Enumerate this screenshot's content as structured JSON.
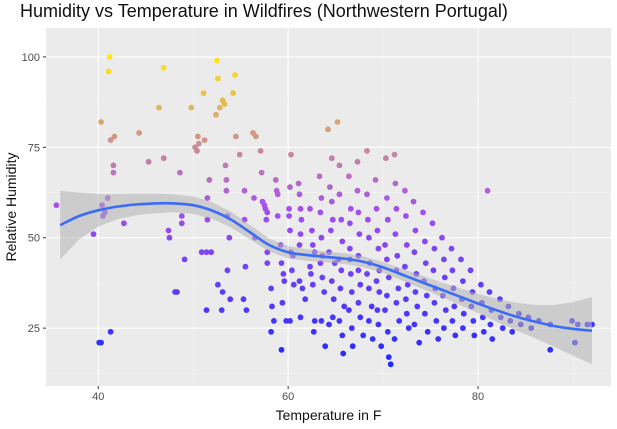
{
  "chart_data": {
    "type": "scatter",
    "title": "Humidity vs Temperature in Wildfires (Northwestern Portugal)",
    "xlabel": "Temperature in F",
    "ylabel": "Relative Humidity",
    "xlim": [
      34.5,
      94
    ],
    "ylim": [
      9,
      108
    ],
    "x_ticks": [
      40,
      60,
      80
    ],
    "y_ticks": [
      25,
      50,
      75,
      100
    ],
    "color_scale": {
      "low": "#1f2bff",
      "mid": "#a34ef0",
      "high": "#ffe713",
      "domain": [
        15,
        100
      ]
    },
    "smooth_fit": {
      "method": "loess",
      "x": [
        36,
        38,
        40,
        42,
        44,
        46,
        48,
        50,
        52,
        54,
        56,
        58,
        60,
        62,
        64,
        66,
        68,
        70,
        72,
        74,
        76,
        78,
        80,
        82,
        84,
        86,
        88,
        90,
        92
      ],
      "y": [
        53.5,
        56,
        57.6,
        58.6,
        59.2,
        59.5,
        59.5,
        59,
        57.5,
        55,
        51.5,
        48,
        46,
        45.2,
        44.7,
        44.2,
        43.3,
        41.8,
        39.8,
        37.8,
        35.8,
        33.8,
        31.8,
        29.9,
        28.2,
        26.8,
        25.6,
        24.8,
        24.3
      ],
      "ci_half_width": [
        9.5,
        6.5,
        4.5,
        3.5,
        3,
        2.7,
        2.5,
        2.4,
        2.3,
        2.2,
        2,
        1.8,
        1.7,
        1.6,
        1.5,
        1.5,
        1.5,
        1.5,
        1.6,
        1.8,
        2,
        2.3,
        2.7,
        3.2,
        3.8,
        4.6,
        5.8,
        7.4,
        9.3
      ],
      "color": "#3b6cf5",
      "band_color": "#b3b3b3"
    },
    "points": [
      [
        35.6,
        59
      ],
      [
        39.5,
        51
      ],
      [
        40.3,
        82
      ],
      [
        40.1,
        21
      ],
      [
        40.3,
        21
      ],
      [
        40.4,
        59
      ],
      [
        40.5,
        56
      ],
      [
        40.7,
        57
      ],
      [
        41,
        61
      ],
      [
        41.1,
        96
      ],
      [
        41.2,
        100
      ],
      [
        41.3,
        77
      ],
      [
        41.7,
        78
      ],
      [
        41.6,
        70
      ],
      [
        41.6,
        68
      ],
      [
        41.3,
        24
      ],
      [
        42.7,
        54
      ],
      [
        44.3,
        79
      ],
      [
        45.3,
        71
      ],
      [
        46.4,
        86
      ],
      [
        46.9,
        97
      ],
      [
        46.9,
        72
      ],
      [
        47.4,
        52
      ],
      [
        47.5,
        50
      ],
      [
        48.6,
        68
      ],
      [
        48.8,
        56
      ],
      [
        48.8,
        54
      ],
      [
        48.1,
        35
      ],
      [
        48.3,
        35
      ],
      [
        49.1,
        44
      ],
      [
        49.8,
        86
      ],
      [
        50.2,
        75
      ],
      [
        50.4,
        74
      ],
      [
        50.5,
        78
      ],
      [
        50.6,
        76
      ],
      [
        51.1,
        90
      ],
      [
        51.2,
        77
      ],
      [
        51.5,
        61
      ],
      [
        51.5,
        55
      ],
      [
        51.4,
        46
      ],
      [
        51.7,
        66
      ],
      [
        51.9,
        46
      ],
      [
        52.4,
        84
      ],
      [
        52.5,
        99
      ],
      [
        52.6,
        94
      ],
      [
        52.8,
        86
      ],
      [
        53.1,
        88
      ],
      [
        53.3,
        87
      ],
      [
        53.4,
        70
      ],
      [
        53.5,
        66
      ],
      [
        53.5,
        63
      ],
      [
        53.6,
        56
      ],
      [
        53.8,
        50
      ],
      [
        53.6,
        41
      ],
      [
        53.9,
        33
      ],
      [
        53.1,
        35
      ],
      [
        53.0,
        30
      ],
      [
        51.4,
        30
      ],
      [
        50.9,
        46
      ],
      [
        52.6,
        37
      ],
      [
        54.4,
        95
      ],
      [
        54.2,
        90
      ],
      [
        54.5,
        78
      ],
      [
        54.9,
        73
      ],
      [
        55.4,
        63
      ],
      [
        55.4,
        55
      ],
      [
        55.5,
        42
      ],
      [
        55.3,
        33
      ],
      [
        55.6,
        30
      ],
      [
        56.3,
        79
      ],
      [
        56.6,
        78
      ],
      [
        56.4,
        61
      ],
      [
        56.5,
        50
      ],
      [
        57.1,
        74
      ],
      [
        57.2,
        68
      ],
      [
        57.3,
        60
      ],
      [
        57.5,
        59
      ],
      [
        57.6,
        58
      ],
      [
        57.8,
        57
      ],
      [
        57.7,
        55
      ],
      [
        57.8,
        46
      ],
      [
        57.8,
        43
      ],
      [
        58.2,
        36
      ],
      [
        58.3,
        31
      ],
      [
        58.5,
        27
      ],
      [
        58.2,
        24
      ],
      [
        58.7,
        66
      ],
      [
        58.8,
        63
      ],
      [
        58.9,
        62
      ],
      [
        58.9,
        56
      ],
      [
        59.2,
        48
      ],
      [
        59.3,
        43
      ],
      [
        59.5,
        40
      ],
      [
        59.6,
        38
      ],
      [
        59.4,
        32
      ],
      [
        59.8,
        27
      ],
      [
        59.3,
        19
      ],
      [
        60.3,
        73
      ],
      [
        60.2,
        64
      ],
      [
        60.1,
        58
      ],
      [
        60.1,
        56
      ],
      [
        60.2,
        52
      ],
      [
        60.3,
        46
      ],
      [
        60.5,
        45
      ],
      [
        60.4,
        41
      ],
      [
        60.2,
        27
      ],
      [
        60.6,
        37
      ],
      [
        61.1,
        65
      ],
      [
        61.2,
        62
      ],
      [
        61.3,
        58
      ],
      [
        61.4,
        55
      ],
      [
        61.3,
        51
      ],
      [
        61.2,
        48
      ],
      [
        61.2,
        38
      ],
      [
        61.5,
        36
      ],
      [
        61.8,
        33
      ],
      [
        61.3,
        28
      ],
      [
        62.3,
        58
      ],
      [
        62.5,
        52
      ],
      [
        62.6,
        48
      ],
      [
        62.8,
        46
      ],
      [
        62.3,
        42
      ],
      [
        62.4,
        40
      ],
      [
        62.6,
        37
      ],
      [
        62.8,
        27
      ],
      [
        62.7,
        24
      ],
      [
        63.3,
        67
      ],
      [
        63.5,
        61
      ],
      [
        63.4,
        57
      ],
      [
        63.5,
        50
      ],
      [
        63.6,
        45
      ],
      [
        63.4,
        43
      ],
      [
        63.6,
        39
      ],
      [
        63.8,
        35
      ],
      [
        63.5,
        27
      ],
      [
        63.9,
        20
      ],
      [
        64.2,
        80
      ],
      [
        64.6,
        72
      ],
      [
        64.4,
        64
      ],
      [
        64.6,
        60
      ],
      [
        64.7,
        55
      ],
      [
        64.5,
        52
      ],
      [
        64.3,
        46
      ],
      [
        64.9,
        43
      ],
      [
        64.6,
        38
      ],
      [
        64.8,
        33
      ],
      [
        64.7,
        28
      ],
      [
        64.3,
        26
      ],
      [
        65.2,
        82
      ],
      [
        65.4,
        70
      ],
      [
        65.4,
        62
      ],
      [
        65.6,
        55
      ],
      [
        65.7,
        49
      ],
      [
        65.3,
        44
      ],
      [
        65.6,
        41
      ],
      [
        65.5,
        36
      ],
      [
        65.9,
        31
      ],
      [
        65.4,
        27
      ],
      [
        65.7,
        23
      ],
      [
        65.8,
        18
      ],
      [
        66.4,
        67
      ],
      [
        66.6,
        58
      ],
      [
        66.5,
        54
      ],
      [
        66.5,
        47
      ],
      [
        66.5,
        44
      ],
      [
        66.6,
        40
      ],
      [
        66.7,
        35
      ],
      [
        66.4,
        30
      ],
      [
        66.7,
        25
      ],
      [
        66.8,
        20
      ],
      [
        67.3,
        71
      ],
      [
        67.3,
        63
      ],
      [
        67.4,
        57
      ],
      [
        67.5,
        51
      ],
      [
        67.4,
        45
      ],
      [
        67.4,
        41
      ],
      [
        67.6,
        37
      ],
      [
        67.4,
        32
      ],
      [
        67.6,
        28
      ],
      [
        67.9,
        23
      ],
      [
        68.3,
        74
      ],
      [
        68.3,
        62
      ],
      [
        68.4,
        55
      ],
      [
        68.5,
        50
      ],
      [
        68.6,
        43
      ],
      [
        68.3,
        40
      ],
      [
        68.5,
        36
      ],
      [
        68.8,
        31
      ],
      [
        68.5,
        27
      ],
      [
        68.9,
        22
      ],
      [
        69.2,
        66
      ],
      [
        69.3,
        58
      ],
      [
        69.4,
        52
      ],
      [
        69.5,
        47
      ],
      [
        69.6,
        41
      ],
      [
        69.3,
        38
      ],
      [
        69.6,
        35
      ],
      [
        69.4,
        30
      ],
      [
        69.5,
        26
      ],
      [
        69.8,
        20
      ],
      [
        70.3,
        72
      ],
      [
        70.4,
        61
      ],
      [
        70.5,
        55
      ],
      [
        70.2,
        48
      ],
      [
        70.4,
        44
      ],
      [
        70.6,
        39
      ],
      [
        70.4,
        34
      ],
      [
        70.2,
        30
      ],
      [
        70.5,
        24
      ],
      [
        70.6,
        17
      ],
      [
        70.8,
        15
      ],
      [
        71.2,
        73
      ],
      [
        71.3,
        65
      ],
      [
        71.4,
        58
      ],
      [
        71.3,
        51
      ],
      [
        71.5,
        45
      ],
      [
        71.4,
        41
      ],
      [
        71.6,
        36
      ],
      [
        71.4,
        32
      ],
      [
        71.7,
        27
      ],
      [
        71.2,
        22
      ],
      [
        72.3,
        63
      ],
      [
        72.4,
        56
      ],
      [
        72.5,
        48
      ],
      [
        72.3,
        42
      ],
      [
        72.6,
        37
      ],
      [
        72.4,
        33
      ],
      [
        72.5,
        29
      ],
      [
        72.7,
        25
      ],
      [
        73.2,
        60
      ],
      [
        73.4,
        52
      ],
      [
        73.3,
        46
      ],
      [
        73.5,
        40
      ],
      [
        73.4,
        35
      ],
      [
        73.6,
        31
      ],
      [
        73.3,
        26
      ],
      [
        73.8,
        21
      ],
      [
        74.2,
        57
      ],
      [
        74.4,
        49
      ],
      [
        74.5,
        43
      ],
      [
        74.3,
        38
      ],
      [
        74.6,
        34
      ],
      [
        74.4,
        29
      ],
      [
        74.7,
        24
      ],
      [
        75.2,
        54
      ],
      [
        75.4,
        47
      ],
      [
        75.3,
        41
      ],
      [
        75.5,
        36
      ],
      [
        75.4,
        32
      ],
      [
        75.6,
        27
      ],
      [
        75.8,
        22
      ],
      [
        76.2,
        50
      ],
      [
        76.4,
        44
      ],
      [
        76.5,
        39
      ],
      [
        76.3,
        34
      ],
      [
        76.6,
        30
      ],
      [
        76.4,
        25
      ],
      [
        77.2,
        47
      ],
      [
        77.3,
        41
      ],
      [
        77.4,
        36
      ],
      [
        77.5,
        31
      ],
      [
        77.3,
        27
      ],
      [
        77.6,
        23
      ],
      [
        78.2,
        44
      ],
      [
        78.4,
        38
      ],
      [
        78.3,
        33
      ],
      [
        78.5,
        29
      ],
      [
        78.4,
        25
      ],
      [
        79.2,
        41
      ],
      [
        79.4,
        35
      ],
      [
        79.3,
        31
      ],
      [
        79.5,
        27
      ],
      [
        79.6,
        23
      ],
      [
        80.3,
        37
      ],
      [
        80.4,
        32
      ],
      [
        80.5,
        28
      ],
      [
        80.6,
        24
      ],
      [
        81.0,
        63
      ],
      [
        81.2,
        35
      ],
      [
        81.4,
        30
      ],
      [
        81.3,
        26
      ],
      [
        81.5,
        22
      ],
      [
        82.3,
        33
      ],
      [
        82.4,
        28
      ],
      [
        82.6,
        25
      ],
      [
        83.2,
        31
      ],
      [
        83.4,
        27
      ],
      [
        83.6,
        24
      ],
      [
        84.3,
        29
      ],
      [
        84.5,
        26
      ],
      [
        85.3,
        28
      ],
      [
        85.6,
        25
      ],
      [
        86.4,
        27
      ],
      [
        87.6,
        26
      ],
      [
        87.6,
        19
      ],
      [
        89.9,
        27
      ],
      [
        90.2,
        21
      ],
      [
        90.5,
        26
      ],
      [
        91.5,
        26
      ],
      [
        92.0,
        26
      ]
    ]
  }
}
